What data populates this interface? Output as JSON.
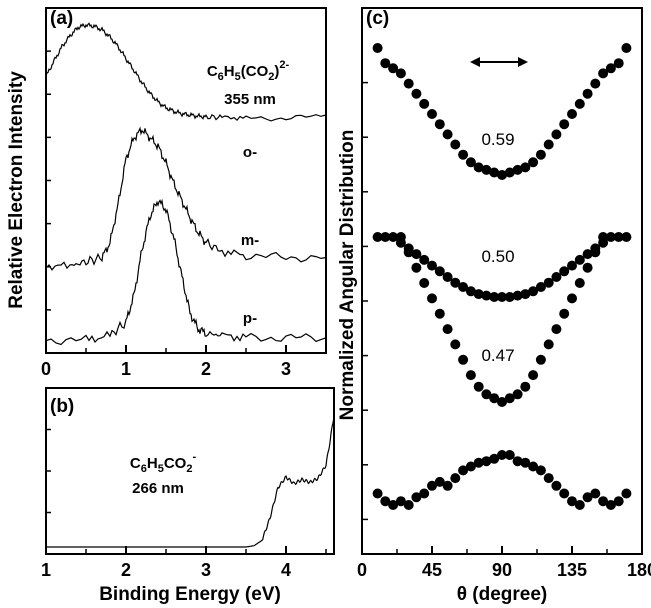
{
  "chart_data": [
    {
      "panel": "(a)",
      "type": "line",
      "annotation_species_main": "C",
      "annotation_species_parts": [
        "6",
        "H",
        "5",
        "(CO",
        "2",
        ")",
        "2-"
      ],
      "annotation_wavelength": "355 nm",
      "xlim": [
        0,
        3.5
      ],
      "xticks": [
        "0",
        "1",
        "2",
        "3"
      ],
      "series": [
        {
          "name": "o-",
          "x": [
            0.0,
            0.1,
            0.2,
            0.3,
            0.4,
            0.5,
            0.6,
            0.7,
            0.8,
            0.9,
            1.0,
            1.1,
            1.2,
            1.3,
            1.4,
            1.5,
            1.6,
            1.7,
            1.8,
            1.9,
            2.0,
            2.2,
            2.5,
            3.0,
            3.5
          ],
          "y": [
            0.57,
            0.7,
            0.82,
            0.91,
            0.98,
            1.0,
            0.99,
            0.96,
            0.9,
            0.82,
            0.72,
            0.62,
            0.52,
            0.43,
            0.36,
            0.31,
            0.28,
            0.26,
            0.25,
            0.24,
            0.235,
            0.23,
            0.225,
            0.22,
            0.25
          ]
        },
        {
          "name": "m-",
          "x": [
            0.0,
            0.3,
            0.5,
            0.7,
            0.8,
            0.9,
            1.0,
            1.1,
            1.2,
            1.3,
            1.4,
            1.5,
            1.6,
            1.7,
            1.8,
            1.9,
            2.0,
            2.2,
            2.5,
            3.0,
            3.5
          ],
          "y": [
            0.01,
            0.01,
            0.03,
            0.05,
            0.12,
            0.3,
            0.52,
            0.62,
            0.66,
            0.62,
            0.58,
            0.5,
            0.4,
            0.32,
            0.24,
            0.17,
            0.12,
            0.08,
            0.06,
            0.05,
            0.05
          ]
        },
        {
          "name": "p-",
          "x": [
            0.0,
            0.5,
            0.8,
            1.0,
            1.1,
            1.2,
            1.3,
            1.4,
            1.5,
            1.6,
            1.7,
            1.8,
            1.9,
            2.0,
            2.2,
            2.5,
            3.0,
            3.5
          ],
          "y": [
            0.0,
            0.0,
            0.02,
            0.08,
            0.2,
            0.4,
            0.55,
            0.62,
            0.58,
            0.45,
            0.28,
            0.12,
            0.05,
            0.03,
            0.02,
            0.01,
            0.01,
            0.01
          ]
        }
      ]
    },
    {
      "panel": "(b)",
      "type": "line",
      "annotation_species_main": "C",
      "annotation_species_parts": [
        "6",
        "H",
        "5",
        "CO",
        "2",
        "-"
      ],
      "annotation_wavelength": "266 nm",
      "xlabel": "Binding Energy (eV)",
      "xlim": [
        1,
        4.6
      ],
      "xticks": [
        "1",
        "2",
        "3",
        "4"
      ],
      "series": [
        {
          "name": "C6H5CO2-",
          "x": [
            1.0,
            2.0,
            3.0,
            3.5,
            3.6,
            3.7,
            3.8,
            3.9,
            4.0,
            4.1,
            4.2,
            4.3,
            4.4,
            4.5,
            4.55,
            4.6
          ],
          "y": [
            0.0,
            0.0,
            0.0,
            0.0,
            0.01,
            0.05,
            0.22,
            0.45,
            0.53,
            0.48,
            0.51,
            0.49,
            0.52,
            0.62,
            0.8,
            1.0
          ]
        }
      ]
    },
    {
      "panel": "(c)",
      "type": "scatter",
      "xlabel": "θ (degree)",
      "xlim": [
        0,
        180
      ],
      "xticks": [
        "0",
        "45",
        "90",
        "135",
        "180"
      ],
      "polarization_arrow": "double-arrow",
      "series": [
        {
          "name": "o-",
          "beta": "0.59",
          "x": [
            10,
            15,
            20,
            25,
            30,
            35,
            40,
            45,
            50,
            55,
            60,
            65,
            70,
            75,
            80,
            85,
            90,
            95,
            100,
            105,
            110,
            115,
            120,
            125,
            130,
            135,
            140,
            145,
            150,
            155,
            160,
            165,
            170
          ],
          "y": [
            1.0,
            0.94,
            0.92,
            0.9,
            0.86,
            0.82,
            0.78,
            0.74,
            0.7,
            0.66,
            0.62,
            0.58,
            0.55,
            0.53,
            0.52,
            0.51,
            0.5,
            0.51,
            0.52,
            0.53,
            0.55,
            0.58,
            0.62,
            0.66,
            0.7,
            0.74,
            0.78,
            0.82,
            0.86,
            0.9,
            0.92,
            0.94,
            1.0
          ]
        },
        {
          "name": "m-",
          "beta": "0.50",
          "x": [
            10,
            15,
            20,
            25,
            30,
            35,
            40,
            45,
            50,
            55,
            60,
            65,
            70,
            75,
            80,
            85,
            90,
            95,
            100,
            105,
            110,
            115,
            120,
            125,
            130,
            135,
            140,
            145,
            150,
            155,
            160,
            165,
            170
          ],
          "y": [
            1.0,
            1.0,
            1.0,
            0.96,
            0.92,
            0.88,
            0.84,
            0.8,
            0.76,
            0.72,
            0.68,
            0.65,
            0.62,
            0.6,
            0.59,
            0.58,
            0.58,
            0.58,
            0.59,
            0.6,
            0.62,
            0.65,
            0.68,
            0.72,
            0.76,
            0.8,
            0.84,
            0.88,
            0.92,
            0.96,
            1.0,
            1.0,
            1.0
          ]
        },
        {
          "name": "p-",
          "beta": "0.47",
          "x": [
            25,
            30,
            35,
            40,
            45,
            50,
            55,
            60,
            65,
            70,
            75,
            80,
            85,
            90,
            95,
            100,
            105,
            110,
            115,
            120,
            125,
            130,
            135,
            140,
            145,
            150,
            155
          ],
          "y": [
            1.0,
            0.96,
            0.92,
            0.88,
            0.84,
            0.8,
            0.76,
            0.72,
            0.68,
            0.64,
            0.61,
            0.59,
            0.58,
            0.57,
            0.58,
            0.59,
            0.61,
            0.64,
            0.68,
            0.72,
            0.76,
            0.8,
            0.84,
            0.88,
            0.92,
            0.96,
            1.0
          ]
        },
        {
          "name": "C6H5CO2-",
          "beta": "",
          "x": [
            10,
            15,
            20,
            25,
            30,
            35,
            40,
            45,
            50,
            55,
            60,
            65,
            70,
            75,
            80,
            85,
            90,
            95,
            100,
            105,
            110,
            115,
            120,
            125,
            130,
            135,
            140,
            145,
            150,
            155,
            160,
            165,
            170
          ],
          "y": [
            0.2,
            0.1,
            0.05,
            0.1,
            0.05,
            0.15,
            0.2,
            0.3,
            0.35,
            0.3,
            0.4,
            0.5,
            0.55,
            0.6,
            0.62,
            0.65,
            0.7,
            0.7,
            0.62,
            0.6,
            0.55,
            0.5,
            0.4,
            0.3,
            0.2,
            0.1,
            0.05,
            0.15,
            0.2,
            0.1,
            0.05,
            0.1,
            0.2
          ]
        }
      ]
    }
  ],
  "axis_titles": {
    "left_y": "Relative Electron Intensity",
    "right_y": "Normalized Angular Distribution",
    "bottom_left_x": "Binding Energy (eV)",
    "bottom_right_x": "θ (degree)"
  },
  "series_labels": {
    "o": "o-",
    "m": "m-",
    "p": "p-"
  },
  "panels": {
    "a": "(a)",
    "b": "(b)",
    "c": "(c)"
  }
}
